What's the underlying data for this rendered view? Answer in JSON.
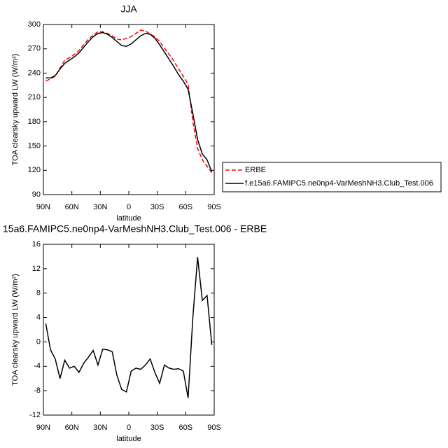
{
  "chart_data": [
    {
      "type": "line",
      "title": "JJA",
      "xlabel": "latitude",
      "ylabel": "TOA clearsky upward LW (W/m²)",
      "x": [
        87.5,
        82.5,
        77.5,
        72.5,
        67.5,
        62.5,
        57.5,
        52.5,
        47.5,
        42.5,
        37.5,
        32.5,
        27.5,
        22.5,
        17.5,
        12.5,
        7.5,
        2.5,
        -2.5,
        -7.5,
        -12.5,
        -17.5,
        -22.5,
        -27.5,
        -32.5,
        -37.5,
        -42.5,
        -47.5,
        -52.5,
        -57.5,
        -62.5,
        -67.5,
        -72.5,
        -77.5,
        -82.5,
        -87.5
      ],
      "series": [
        {
          "name": "ERBE",
          "color": "#ff0000",
          "line_style": "dashed",
          "values": [
            230,
            233,
            236,
            246,
            256,
            259,
            263,
            268,
            275,
            282,
            287,
            291,
            291,
            289,
            286,
            282,
            281,
            283,
            285,
            289,
            293,
            292,
            288,
            285,
            279,
            271,
            263,
            255,
            245,
            236,
            226,
            180,
            147,
            133,
            125,
            117
          ]
        },
        {
          "name": "f.e15a6.FAMIPC5.ne0np4-VarMeshNH3.Club_Test.006",
          "color": "#000000",
          "line_style": "solid",
          "values": [
            234,
            234,
            237,
            245,
            252,
            256,
            260,
            265,
            272,
            279,
            285,
            289,
            290,
            288,
            284,
            279,
            274,
            273,
            276,
            281,
            286,
            289,
            288,
            283,
            275,
            266,
            257,
            248,
            238,
            230,
            220,
            190,
            158,
            140,
            133,
            118
          ]
        }
      ],
      "xlim": [
        90,
        -90
      ],
      "xticks": [
        {
          "value": 90,
          "label": "90N"
        },
        {
          "value": 60,
          "label": "60N"
        },
        {
          "value": 30,
          "label": "30N"
        },
        0,
        {
          "value": -30,
          "label": "30S"
        },
        {
          "value": -60,
          "label": "60S"
        },
        {
          "value": -90,
          "label": "90S"
        }
      ],
      "ylim": [
        90,
        300
      ],
      "yticks": [
        90,
        120,
        150,
        180,
        210,
        240,
        270,
        300
      ],
      "legend": "right"
    },
    {
      "type": "line",
      "title": "15a6.FAMIPC5.ne0np4-VarMeshNH3.Club_Test.006 - ERBE",
      "xlabel": "latitude",
      "ylabel": "TOA clearsky upward LW (W/m²)",
      "x": [
        87.5,
        82.5,
        77.5,
        72.5,
        67.5,
        62.5,
        57.5,
        52.5,
        47.5,
        42.5,
        37.5,
        32.5,
        27.5,
        22.5,
        17.5,
        12.5,
        7.5,
        2.5,
        -2.5,
        -7.5,
        -12.5,
        -17.5,
        -22.5,
        -27.5,
        -32.5,
        -37.5,
        -42.5,
        -47.5,
        -52.5,
        -57.5,
        -62.5,
        -67.5,
        -72.5,
        -77.5,
        -82.5,
        -87.5
      ],
      "color": "#000000",
      "values": [
        3.0,
        -1.3,
        -2.8,
        -6.0,
        -3.0,
        -4.3,
        -4.0,
        -5.0,
        -3.5,
        -2.5,
        -1.4,
        -3.8,
        -1.2,
        -1.3,
        -1.6,
        -5.5,
        -7.8,
        -8.2,
        -4.8,
        -4.3,
        -4.5,
        -3.8,
        -2.8,
        -5.0,
        -6.8,
        -3.8,
        -4.3,
        -4.5,
        -4.4,
        -4.8,
        -9.2,
        4.0,
        13.9,
        6.8,
        7.6,
        -0.5
      ],
      "xlim": [
        90,
        -90
      ],
      "xticks": [
        {
          "value": 90,
          "label": "90N"
        },
        {
          "value": 60,
          "label": "60N"
        },
        {
          "value": 30,
          "label": "30N"
        },
        0,
        {
          "value": -30,
          "label": "30S"
        },
        {
          "value": -60,
          "label": "60S"
        },
        {
          "value": -90,
          "label": "90S"
        }
      ],
      "ylim": [
        -12,
        16
      ],
      "yticks": [
        -12,
        -8,
        -4,
        0,
        4,
        8,
        12,
        16
      ]
    }
  ]
}
